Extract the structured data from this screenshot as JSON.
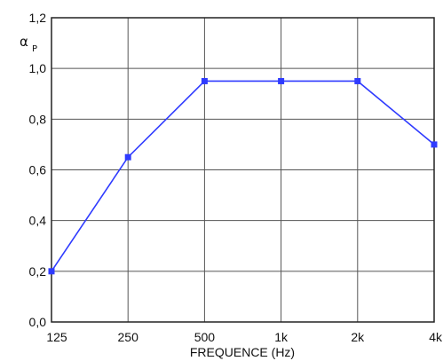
{
  "chart_data": {
    "type": "line",
    "xlabel": "FREQUENCE (Hz)",
    "ylabel": "α",
    "ylabel_subscript": "P",
    "categories": [
      "125",
      "250",
      "500",
      "1k",
      "2k",
      "4k"
    ],
    "y_ticks": [
      "0,0",
      "0,2",
      "0,4",
      "0,6",
      "0,8",
      "1,0",
      "1,2"
    ],
    "ylim": [
      0,
      1.2
    ],
    "grid": true,
    "series": [
      {
        "values": [
          0.2,
          0.65,
          0.95,
          0.95,
          0.95,
          0.7
        ],
        "color": "#2f3bff"
      }
    ]
  }
}
